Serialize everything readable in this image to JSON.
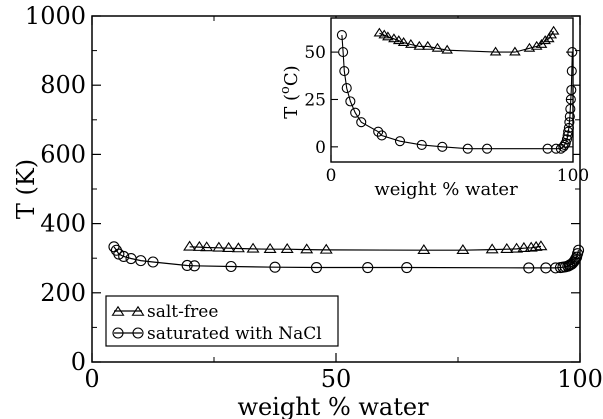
{
  "chart_data": [
    {
      "type": "scatter",
      "xlabel": "weight % water",
      "ylabel": "T (K)",
      "xlim": [
        0,
        100
      ],
      "ylim": [
        0,
        1000
      ],
      "xticks": [
        "0",
        "50",
        "100"
      ],
      "yticks": [
        "0",
        "200",
        "400",
        "600",
        "800",
        "1000"
      ],
      "grid": false,
      "legend_placement": "bottom-left",
      "series": [
        {
          "name": "salt-free",
          "marker": "triangle",
          "x": [
            20,
            22,
            23.5,
            26,
            28,
            30,
            33,
            36.5,
            40,
            44,
            48,
            68,
            76,
            82,
            85,
            87,
            88.5,
            90,
            91,
            92
          ],
          "y": [
            333,
            332,
            331,
            330,
            329,
            328,
            327,
            326,
            326,
            325,
            324,
            323,
            323,
            325,
            326,
            327,
            329,
            330,
            332,
            334
          ]
        },
        {
          "name": "saturated with NaCl",
          "marker": "circle",
          "x": [
            4.5,
            5,
            5.5,
            6.5,
            8,
            10,
            12.5,
            19.5,
            21,
            28.5,
            37.5,
            46,
            56.5,
            64.5,
            89.5,
            93,
            95,
            96,
            96.5,
            97,
            97.5,
            97.8,
            98,
            98.3,
            98.5,
            98.7,
            98.9,
            99.1,
            99.3,
            99.5,
            99.7
          ],
          "y": [
            333,
            323,
            312,
            305,
            299,
            293,
            289,
            279,
            278,
            276,
            274,
            273,
            273,
            273,
            272,
            272,
            272,
            273,
            274,
            275,
            277,
            279,
            281,
            283,
            286,
            289,
            293,
            298,
            303,
            313,
            323
          ]
        }
      ]
    },
    {
      "type": "scatter",
      "xlabel": "weight % water",
      "ylabel": "T (°C)",
      "ylabel_main": "T (",
      "ylabel_degree": "o",
      "ylabel_unit": "C)",
      "xlim": [
        0,
        100
      ],
      "ylim": [
        -8,
        68
      ],
      "xticks": [
        "0",
        "100"
      ],
      "yticks": [
        "0",
        "25",
        "50"
      ],
      "grid": false,
      "series": [
        {
          "marker": "triangle",
          "x": [
            20,
            22,
            23.5,
            26,
            28,
            30,
            33,
            36.5,
            40,
            44,
            48,
            68,
            76,
            82,
            85,
            87,
            88.5,
            90,
            91,
            92
          ],
          "y": [
            60,
            59,
            58,
            57,
            56,
            55,
            54,
            53,
            53,
            52,
            51,
            50,
            50,
            52,
            53,
            54,
            56,
            57,
            59,
            61
          ]
        },
        {
          "marker": "circle",
          "x": [
            4.5,
            5,
            5.5,
            6.5,
            8,
            10,
            12.5,
            19.5,
            21,
            28.5,
            37.5,
            46,
            56.5,
            64.5,
            89.5,
            93,
            95,
            96,
            96.5,
            97,
            97.5,
            97.8,
            98,
            98.3,
            98.5,
            98.7,
            98.9,
            99.1,
            99.3,
            99.5,
            99.7
          ],
          "y": [
            59,
            50,
            40,
            31,
            24,
            18,
            13,
            8,
            6,
            3,
            1,
            0,
            -1,
            -1,
            -1,
            -1,
            -1,
            0,
            1,
            2,
            4,
            6,
            8,
            10,
            13,
            16,
            20,
            25,
            30,
            40,
            50
          ]
        }
      ]
    }
  ]
}
